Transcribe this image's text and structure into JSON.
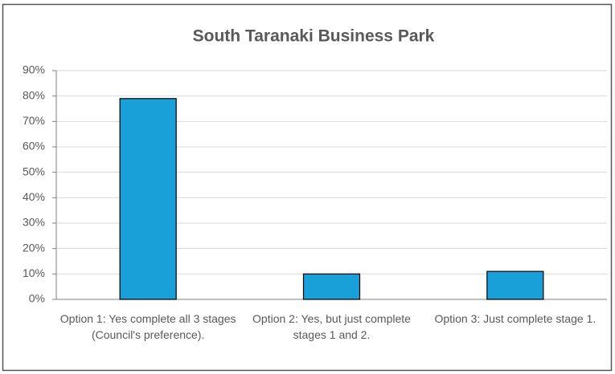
{
  "chart_data": {
    "type": "bar",
    "title": "South Taranaki Business Park",
    "categories": [
      "Option 1: Yes complete all 3 stages (Council's preference).",
      "Option 2: Yes, but just complete stages 1 and 2.",
      "Option 3: Just complete stage 1."
    ],
    "values": [
      79,
      10,
      11
    ],
    "color": "#1aa0d8",
    "ylim": [
      0,
      90
    ],
    "yticks": [
      {
        "value": 0,
        "label": "0%"
      },
      {
        "value": 10,
        "label": "10%"
      },
      {
        "value": 20,
        "label": "20%"
      },
      {
        "value": 30,
        "label": "30%"
      },
      {
        "value": 40,
        "label": "40%"
      },
      {
        "value": 50,
        "label": "50%"
      },
      {
        "value": 60,
        "label": "60%"
      },
      {
        "value": 70,
        "label": "70%"
      },
      {
        "value": 80,
        "label": "80%"
      },
      {
        "value": 90,
        "label": "90%"
      }
    ],
    "grid": true
  }
}
